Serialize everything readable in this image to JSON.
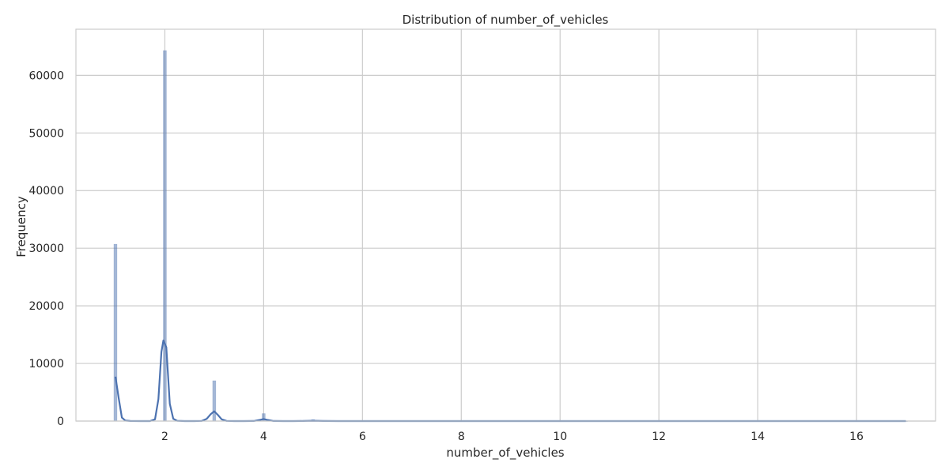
{
  "chart_data": {
    "type": "histogram",
    "title": "Distribution of number_of_vehicles",
    "xlabel": "number_of_vehicles",
    "ylabel": "Frequency",
    "xlim": [
      0.2,
      17.6
    ],
    "ylim": [
      0,
      68000
    ],
    "xticks": [
      2,
      4,
      6,
      8,
      10,
      12,
      14,
      16
    ],
    "yticks": [
      0,
      10000,
      20000,
      30000,
      40000,
      50000,
      60000
    ],
    "grid": true,
    "histogram_color": "#4c72b0",
    "kde_color": "#4c72b0",
    "bars": [
      {
        "x": 1,
        "count": 30700
      },
      {
        "x": 2,
        "count": 64300
      },
      {
        "x": 3,
        "count": 7000
      },
      {
        "x": 4,
        "count": 1300
      },
      {
        "x": 5,
        "count": 250
      },
      {
        "x": 6,
        "count": 60
      },
      {
        "x": 7,
        "count": 20
      },
      {
        "x": 8,
        "count": 8
      },
      {
        "x": 16,
        "count": 2
      },
      {
        "x": 17,
        "count": 2
      }
    ],
    "kde": {
      "x": [
        1.0,
        1.07,
        1.13,
        1.2,
        1.3,
        1.5,
        1.7,
        1.8,
        1.87,
        1.93,
        1.97,
        2.03,
        2.1,
        2.17,
        2.25,
        2.4,
        2.6,
        2.75,
        2.85,
        2.93,
        3.0,
        3.07,
        3.15,
        3.25,
        3.4,
        3.6,
        3.8,
        3.93,
        4.0,
        4.07,
        4.2,
        4.4,
        4.6,
        4.8,
        5.0,
        5.2,
        5.5,
        6.0,
        8.0,
        12.0,
        17.0
      ],
      "y": [
        7700,
        3800,
        600,
        80,
        10,
        0,
        0,
        300,
        3800,
        12000,
        14000,
        12800,
        3000,
        400,
        40,
        0,
        0,
        30,
        400,
        1200,
        1700,
        1100,
        300,
        30,
        0,
        0,
        10,
        200,
        350,
        200,
        20,
        0,
        0,
        10,
        60,
        10,
        0,
        0,
        0,
        0,
        0
      ]
    }
  }
}
